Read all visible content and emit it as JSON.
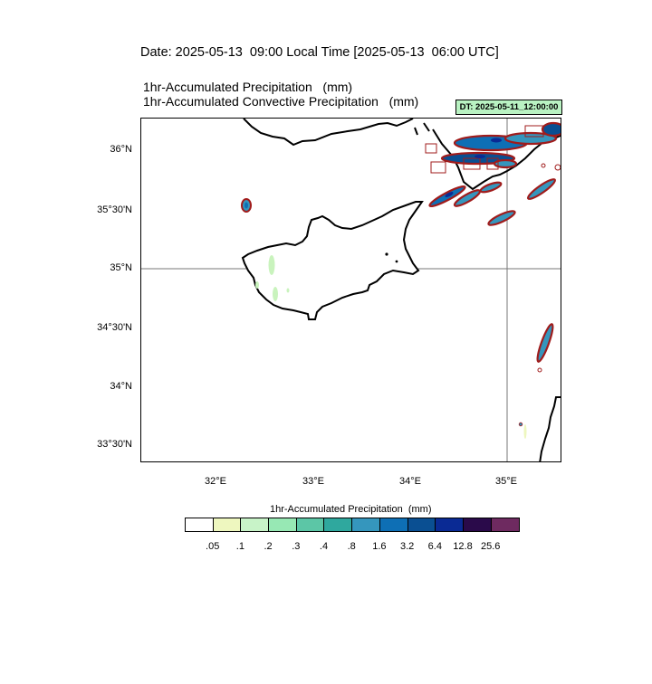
{
  "header": {
    "date_line": "Date: 2025-05-13  09:00 Local Time [2025-05-13  06:00 UTC]",
    "title_line_1": "1hr-Accumulated Precipitation   (mm)",
    "title_line_2": "1hr-Accumulated Convective Precipitation   (mm)",
    "dt_badge": "DT: 2025-05-11_12:00:00",
    "dt_badge_color": "#b9f2c2"
  },
  "map": {
    "region": "Cyprus and Eastern Mediterranean",
    "lat_labels": [
      "36°N",
      "35°30'N",
      "35°N",
      "34°30'N",
      "34°N",
      "33°30'N"
    ],
    "lon_labels": [
      "32°E",
      "33°E",
      "34°E",
      "35°E"
    ],
    "reference_lines": [
      "35°N",
      "35°E"
    ],
    "coast_color": "#000000",
    "convective_contour_color": "#a01c1c",
    "light_precip_color": "#c9f3bd"
  },
  "colorbar": {
    "title": "1hr-Accumulated Precipitation  (mm)",
    "colors": [
      "#ffffff",
      "#eef7bf",
      "#c8f3c8",
      "#97e8b4",
      "#5cc6a6",
      "#2fa89e",
      "#3596bd",
      "#0e6fb5",
      "#0a4f92",
      "#0a2a94",
      "#2a0a4a",
      "#6e2a60"
    ],
    "ticks": [
      ".05",
      ".1",
      ".2",
      ".3",
      ".4",
      ".8",
      "1.6",
      "3.2",
      "6.4",
      "12.8",
      "25.6"
    ]
  }
}
